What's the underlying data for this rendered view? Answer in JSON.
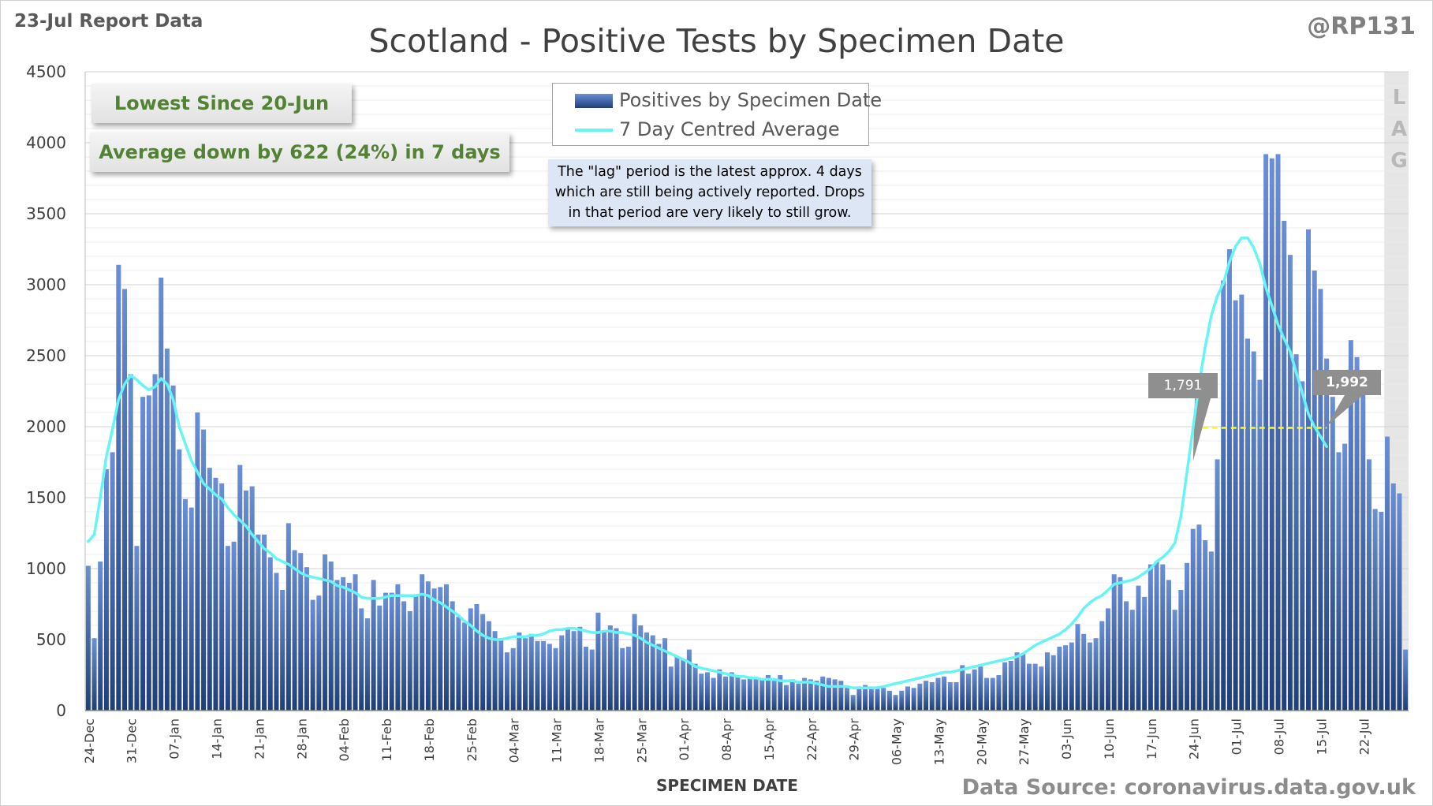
{
  "report_label": "23-Jul Report Data",
  "author": "@RP131",
  "source": "Data Source: coronavirus.data.gov.uk",
  "callouts": {
    "lowest": "Lowest Since 20-Jun",
    "average": "Average down by 622 (24%) in 7 days"
  },
  "legend": {
    "bars": "Positives by Specimen Date",
    "line": "7 Day Centred Average"
  },
  "note": {
    "line1": "The \"lag\" period is the latest approx. 4 days",
    "line2": "which are still being actively reported.  Drops",
    "line3": "in that period are very likely to still grow."
  },
  "lag_letters": [
    "L",
    "A",
    "G"
  ],
  "tooltips": {
    "left": "1,791",
    "right": "1,992"
  },
  "colors": {
    "bar_top": "#6b8fd6",
    "bar_bottom": "#1f3f7a",
    "average_line": "#66f4f4",
    "reference_line": "#ffff00",
    "callout_text": "#538135"
  },
  "chart_data": {
    "type": "bar",
    "title": "Scotland - Positive Tests by Specimen Date",
    "xlabel": "SPECIMEN DATE",
    "ylabel": "",
    "ylim": [
      0,
      4500
    ],
    "yticks": [
      0,
      500,
      1000,
      1500,
      2000,
      2500,
      3000,
      3500,
      4000,
      4500
    ],
    "xtick_labels": [
      "24-Dec",
      "31-Dec",
      "07-Jan",
      "14-Jan",
      "21-Jan",
      "28-Jan",
      "04-Feb",
      "11-Feb",
      "18-Feb",
      "25-Feb",
      "04-Mar",
      "11-Mar",
      "18-Mar",
      "25-Mar",
      "01-Apr",
      "08-Apr",
      "15-Apr",
      "22-Apr",
      "29-Apr",
      "06-May",
      "13-May",
      "20-May",
      "27-May",
      "03-Jun",
      "10-Jun",
      "17-Jun",
      "24-Jun",
      "01-Jul",
      "08-Jul",
      "15-Jul",
      "22-Jul"
    ],
    "grid": true,
    "legend_position": "top-center",
    "series": [
      {
        "name": "Positives by Specimen Date",
        "type": "bar",
        "values": [
          1020,
          510,
          1050,
          1700,
          1820,
          3140,
          2970,
          2370,
          1160,
          2210,
          2220,
          2370,
          3050,
          2550,
          2290,
          1840,
          1490,
          1430,
          2100,
          1980,
          1710,
          1640,
          1600,
          1160,
          1190,
          1730,
          1550,
          1580,
          1240,
          1240,
          1080,
          970,
          850,
          1320,
          1130,
          1110,
          1010,
          780,
          810,
          1100,
          1050,
          920,
          940,
          900,
          960,
          720,
          650,
          920,
          740,
          830,
          830,
          890,
          770,
          700,
          810,
          960,
          910,
          860,
          870,
          890,
          770,
          660,
          620,
          720,
          750,
          680,
          630,
          560,
          510,
          410,
          440,
          550,
          510,
          540,
          490,
          490,
          470,
          440,
          530,
          580,
          560,
          590,
          450,
          430,
          690,
          550,
          600,
          580,
          440,
          450,
          680,
          600,
          550,
          530,
          470,
          510,
          310,
          380,
          360,
          430,
          330,
          260,
          270,
          230,
          290,
          240,
          270,
          250,
          220,
          240,
          230,
          220,
          250,
          210,
          250,
          180,
          220,
          190,
          230,
          220,
          210,
          240,
          230,
          220,
          210,
          160,
          110,
          170,
          180,
          170,
          170,
          160,
          140,
          110,
          140,
          170,
          160,
          190,
          210,
          200,
          230,
          240,
          200,
          200,
          320,
          260,
          290,
          310,
          230,
          230,
          250,
          340,
          350,
          410,
          400,
          330,
          330,
          310,
          410,
          390,
          450,
          460,
          480,
          610,
          540,
          480,
          510,
          630,
          720,
          960,
          940,
          770,
          710,
          880,
          800,
          1030,
          1050,
          1030,
          920,
          710,
          850,
          1040,
          1280,
          1310,
          1200,
          1120,
          1770,
          3030,
          3250,
          2890,
          2930,
          2620,
          2530,
          2330,
          3920,
          3890,
          3920,
          3450,
          3210,
          2510,
          2320,
          3390,
          3100,
          2970,
          2480,
          2210,
          1820,
          1880,
          2610,
          2490,
          2250,
          1770,
          1420,
          1400,
          1930,
          1600,
          1530,
          430
        ]
      },
      {
        "name": "7 Day Centred Average",
        "type": "line",
        "points": [
          [
            0,
            1190
          ],
          [
            1,
            1240
          ],
          [
            2,
            1500
          ],
          [
            3,
            1790
          ],
          [
            4,
            1980
          ],
          [
            5,
            2190
          ],
          [
            6,
            2300
          ],
          [
            7,
            2360
          ],
          [
            8,
            2330
          ],
          [
            9,
            2290
          ],
          [
            10,
            2260
          ],
          [
            11,
            2280
          ],
          [
            12,
            2340
          ],
          [
            13,
            2300
          ],
          [
            14,
            2190
          ],
          [
            15,
            2000
          ],
          [
            16,
            1880
          ],
          [
            17,
            1760
          ],
          [
            18,
            1680
          ],
          [
            19,
            1600
          ],
          [
            20,
            1560
          ],
          [
            21,
            1520
          ],
          [
            22,
            1490
          ],
          [
            23,
            1430
          ],
          [
            24,
            1380
          ],
          [
            25,
            1340
          ],
          [
            26,
            1300
          ],
          [
            27,
            1240
          ],
          [
            28,
            1190
          ],
          [
            29,
            1140
          ],
          [
            30,
            1110
          ],
          [
            31,
            1070
          ],
          [
            32,
            1050
          ],
          [
            33,
            1030
          ],
          [
            34,
            1000
          ],
          [
            35,
            970
          ],
          [
            36,
            950
          ],
          [
            37,
            940
          ],
          [
            38,
            930
          ],
          [
            39,
            920
          ],
          [
            40,
            910
          ],
          [
            41,
            880
          ],
          [
            42,
            870
          ],
          [
            43,
            850
          ],
          [
            44,
            830
          ],
          [
            45,
            800
          ],
          [
            46,
            790
          ],
          [
            47,
            790
          ],
          [
            48,
            790
          ],
          [
            49,
            800
          ],
          [
            50,
            810
          ],
          [
            51,
            810
          ],
          [
            52,
            810
          ],
          [
            53,
            810
          ],
          [
            54,
            810
          ],
          [
            55,
            820
          ],
          [
            56,
            810
          ],
          [
            57,
            780
          ],
          [
            58,
            760
          ],
          [
            59,
            730
          ],
          [
            60,
            700
          ],
          [
            61,
            670
          ],
          [
            62,
            630
          ],
          [
            63,
            600
          ],
          [
            64,
            560
          ],
          [
            65,
            530
          ],
          [
            66,
            510
          ],
          [
            67,
            500
          ],
          [
            68,
            500
          ],
          [
            69,
            510
          ],
          [
            70,
            520
          ],
          [
            71,
            520
          ],
          [
            72,
            520
          ],
          [
            73,
            530
          ],
          [
            74,
            530
          ],
          [
            75,
            540
          ],
          [
            76,
            560
          ],
          [
            77,
            570
          ],
          [
            78,
            570
          ],
          [
            79,
            580
          ],
          [
            80,
            580
          ],
          [
            81,
            570
          ],
          [
            82,
            560
          ],
          [
            83,
            550
          ],
          [
            84,
            550
          ],
          [
            85,
            560
          ],
          [
            86,
            560
          ],
          [
            87,
            550
          ],
          [
            88,
            550
          ],
          [
            89,
            540
          ],
          [
            90,
            530
          ],
          [
            91,
            510
          ],
          [
            92,
            480
          ],
          [
            93,
            460
          ],
          [
            94,
            440
          ],
          [
            95,
            420
          ],
          [
            96,
            400
          ],
          [
            97,
            380
          ],
          [
            98,
            360
          ],
          [
            99,
            340
          ],
          [
            100,
            310
          ],
          [
            101,
            300
          ],
          [
            102,
            290
          ],
          [
            103,
            280
          ],
          [
            104,
            270
          ],
          [
            105,
            260
          ],
          [
            106,
            250
          ],
          [
            107,
            240
          ],
          [
            108,
            240
          ],
          [
            109,
            230
          ],
          [
            110,
            230
          ],
          [
            111,
            220
          ],
          [
            112,
            220
          ],
          [
            113,
            220
          ],
          [
            114,
            210
          ],
          [
            115,
            210
          ],
          [
            116,
            210
          ],
          [
            117,
            200
          ],
          [
            118,
            200
          ],
          [
            119,
            200
          ],
          [
            120,
            190
          ],
          [
            121,
            180
          ],
          [
            122,
            170
          ],
          [
            123,
            170
          ],
          [
            124,
            170
          ],
          [
            125,
            170
          ],
          [
            126,
            160
          ],
          [
            127,
            160
          ],
          [
            128,
            160
          ],
          [
            129,
            160
          ],
          [
            130,
            160
          ],
          [
            131,
            170
          ],
          [
            132,
            180
          ],
          [
            133,
            190
          ],
          [
            134,
            200
          ],
          [
            135,
            210
          ],
          [
            136,
            220
          ],
          [
            137,
            230
          ],
          [
            138,
            240
          ],
          [
            139,
            250
          ],
          [
            140,
            260
          ],
          [
            141,
            270
          ],
          [
            142,
            270
          ],
          [
            143,
            280
          ],
          [
            144,
            290
          ],
          [
            145,
            300
          ],
          [
            146,
            310
          ],
          [
            147,
            320
          ],
          [
            148,
            330
          ],
          [
            149,
            340
          ],
          [
            150,
            350
          ],
          [
            151,
            360
          ],
          [
            152,
            370
          ],
          [
            153,
            380
          ],
          [
            154,
            400
          ],
          [
            155,
            430
          ],
          [
            156,
            460
          ],
          [
            157,
            480
          ],
          [
            158,
            500
          ],
          [
            159,
            520
          ],
          [
            160,
            540
          ],
          [
            161,
            570
          ],
          [
            162,
            610
          ],
          [
            163,
            660
          ],
          [
            164,
            720
          ],
          [
            165,
            760
          ],
          [
            166,
            790
          ],
          [
            167,
            810
          ],
          [
            168,
            850
          ],
          [
            169,
            890
          ],
          [
            170,
            900
          ],
          [
            171,
            910
          ],
          [
            172,
            920
          ],
          [
            173,
            940
          ],
          [
            174,
            970
          ],
          [
            175,
            1000
          ],
          [
            176,
            1050
          ],
          [
            177,
            1080
          ],
          [
            178,
            1120
          ],
          [
            179,
            1180
          ],
          [
            180,
            1370
          ],
          [
            181,
            1680
          ],
          [
            182,
            1990
          ],
          [
            183,
            2300
          ],
          [
            184,
            2560
          ],
          [
            185,
            2780
          ],
          [
            186,
            2920
          ],
          [
            187,
            3010
          ],
          [
            188,
            3160
          ],
          [
            189,
            3270
          ],
          [
            190,
            3330
          ],
          [
            191,
            3330
          ],
          [
            192,
            3260
          ],
          [
            193,
            3150
          ],
          [
            194,
            2980
          ],
          [
            195,
            2850
          ],
          [
            196,
            2720
          ],
          [
            197,
            2620
          ],
          [
            198,
            2530
          ],
          [
            199,
            2380
          ],
          [
            200,
            2240
          ],
          [
            201,
            2090
          ],
          [
            202,
            2000
          ],
          [
            203,
            1930
          ],
          [
            204,
            1860
          ]
        ]
      }
    ],
    "reference_line": {
      "y": 1992,
      "from_index": 182,
      "to_index": 204
    }
  }
}
